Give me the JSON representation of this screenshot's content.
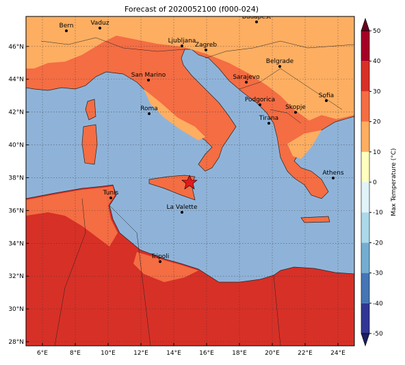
{
  "title": "Forecast of 2020052100 (f000-024)",
  "map": {
    "xlim": [
      5,
      25
    ],
    "ylim": [
      27.75,
      47.83
    ],
    "xticks": [
      {
        "value": 6,
        "label": "6°E"
      },
      {
        "value": 8,
        "label": "8°E"
      },
      {
        "value": 10,
        "label": "10°E"
      },
      {
        "value": 12,
        "label": "12°E"
      },
      {
        "value": 14,
        "label": "14°E"
      },
      {
        "value": 16,
        "label": "16°E"
      },
      {
        "value": 18,
        "label": "18°E"
      },
      {
        "value": 20,
        "label": "20°E"
      },
      {
        "value": 22,
        "label": "22°E"
      },
      {
        "value": 24,
        "label": "24°E"
      }
    ],
    "yticks": [
      {
        "value": 28,
        "label": "28°N"
      },
      {
        "value": 30,
        "label": "30°N"
      },
      {
        "value": 32,
        "label": "32°N"
      },
      {
        "value": 34,
        "label": "34°N"
      },
      {
        "value": 36,
        "label": "36°N"
      },
      {
        "value": 38,
        "label": "38°N"
      },
      {
        "value": 40,
        "label": "40°N"
      },
      {
        "value": 42,
        "label": "42°N"
      },
      {
        "value": 44,
        "label": "44°N"
      },
      {
        "value": 46,
        "label": "46°N"
      }
    ],
    "grid": true,
    "cities": [
      "Bern",
      "Vaduz",
      "Budapest",
      "Ljubljana",
      "Zagreb",
      "Belgrade",
      "San Marino",
      "Sarajevo",
      "Sofia",
      "Podgorica",
      "Skopje",
      "Roma",
      "Tirana",
      "Athens",
      "Tunis",
      "La Valette",
      "Tripoli"
    ]
  },
  "colorbar": {
    "label": "Max Temperature (°C)",
    "lim": [
      -50,
      50
    ],
    "ticks": [
      -50,
      -40,
      -30,
      -20,
      -10,
      0,
      10,
      20,
      30,
      40,
      50
    ],
    "colors": [
      "#313695",
      "#4575b4",
      "#74add1",
      "#abd9e9",
      "#e0f3f8",
      "#ffffbf",
      "#fdae61",
      "#f46d43",
      "#d73027",
      "#a50026"
    ],
    "extend_colors": [
      "#1b1f5c",
      "#67001f"
    ]
  }
}
